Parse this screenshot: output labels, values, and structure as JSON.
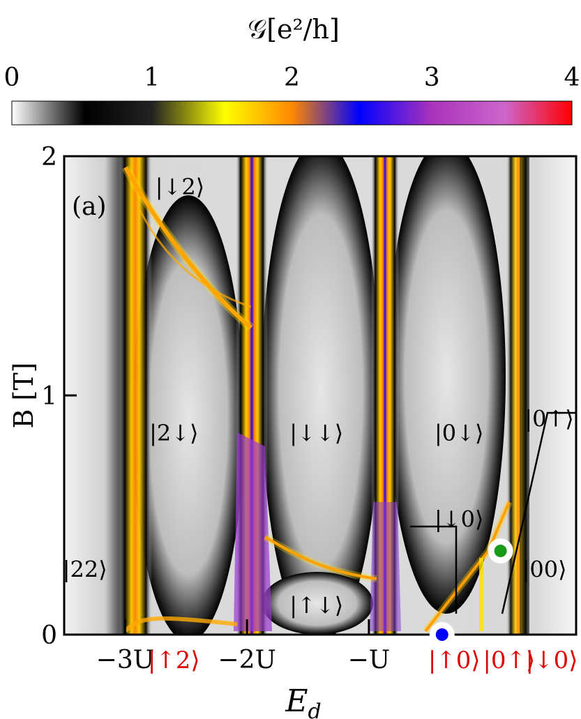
{
  "chart_data": {
    "type": "heatmap",
    "colorbar": {
      "title": "𝒢[e²/h]",
      "ticks": [
        "0",
        "1",
        "2",
        "3",
        "4"
      ],
      "range": [
        0,
        4
      ],
      "colormap": [
        "#ffffff",
        "#000000",
        "#ffff00",
        "#ff8800",
        "#0000ff",
        "#aa44cc",
        "#cc66cc",
        "#ff0000"
      ]
    },
    "panel_label": "(a)",
    "xlabel": "E_d",
    "ylabel": "B [T]",
    "y_ticks": [
      "0",
      "1",
      "2"
    ],
    "ylim": [
      0,
      2
    ],
    "x_ticks": [
      {
        "label": "−3U",
        "value": -3
      },
      {
        "label": "−2U",
        "value": -2
      },
      {
        "label": "−U",
        "value": -1
      }
    ],
    "xlim": [
      -3.5,
      0.7
    ],
    "red_labels": [
      {
        "text": "|↑2⟩",
        "x": -2.6
      },
      {
        "text": "|↑0⟩",
        "x": -0.3
      },
      {
        "text": "|0↑⟩",
        "x": 0.15
      },
      {
        "text": "|↓0⟩",
        "x": 0.5
      }
    ],
    "state_labels": [
      {
        "text": "|↓2⟩",
        "x": -2.55,
        "y": 1.84
      },
      {
        "text": "|2↓⟩",
        "x": -2.6,
        "y": 0.81
      },
      {
        "text": "|↓↓⟩",
        "x": -1.43,
        "y": 0.81
      },
      {
        "text": "|0↓⟩",
        "x": -0.26,
        "y": 0.81
      },
      {
        "text": "|↓0⟩",
        "x": -0.26,
        "y": 0.45
      },
      {
        "text": "|0↑⟩",
        "x": 0.48,
        "y": 0.87
      },
      {
        "text": "|22⟩",
        "x": -3.33,
        "y": 0.24
      },
      {
        "text": "|↑↓⟩",
        "x": -1.43,
        "y": 0.09
      },
      {
        "text": "|00⟩",
        "x": 0.44,
        "y": 0.24
      }
    ],
    "markers": [
      {
        "name": "blue-marker",
        "x": -0.4,
        "y": 0.0,
        "color": "#0000ff"
      },
      {
        "name": "green-marker",
        "x": 0.08,
        "y": 0.35,
        "color": "#1a9a1a"
      }
    ]
  }
}
